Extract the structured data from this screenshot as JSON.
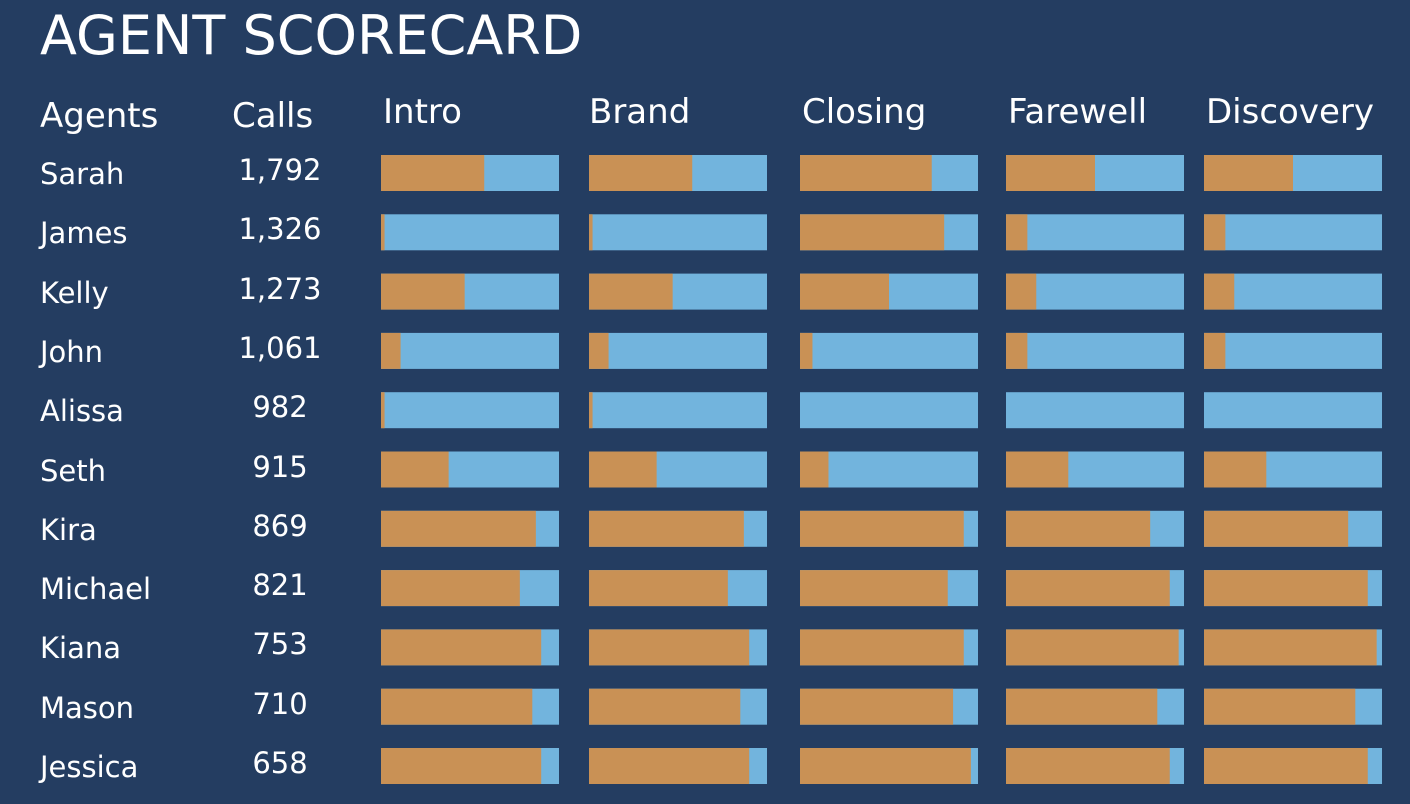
{
  "title": "AGENT SCORECARD",
  "headers": {
    "agents": "Agents",
    "calls": "Calls"
  },
  "colors": {
    "background": "#243d61",
    "score": "#c99155",
    "remainder": "#72b4dd",
    "text": "#ffffff"
  },
  "chart_data": {
    "type": "bar",
    "stacked": true,
    "metrics": [
      "Intro",
      "Brand",
      "Closing",
      "Farewell",
      "Discovery"
    ],
    "agents": [
      "Sarah",
      "James",
      "Kelly",
      "John",
      "Alissa",
      "Seth",
      "Kira",
      "Michael",
      "Kiana",
      "Mason",
      "Jessica"
    ],
    "calls": [
      "1,792",
      "1,326",
      "1,273",
      "1,061",
      "982",
      "915",
      "869",
      "821",
      "753",
      "710",
      "658"
    ],
    "scores": [
      [
        0.58,
        0.58,
        0.74,
        0.5,
        0.5
      ],
      [
        0.02,
        0.02,
        0.81,
        0.12,
        0.12
      ],
      [
        0.47,
        0.47,
        0.5,
        0.17,
        0.17
      ],
      [
        0.11,
        0.11,
        0.07,
        0.12,
        0.12
      ],
      [
        0.02,
        0.02,
        0.0,
        0.0,
        0.0
      ],
      [
        0.38,
        0.38,
        0.16,
        0.35,
        0.35
      ],
      [
        0.87,
        0.87,
        0.92,
        0.81,
        0.81
      ],
      [
        0.78,
        0.78,
        0.83,
        0.92,
        0.92
      ],
      [
        0.9,
        0.9,
        0.92,
        0.97,
        0.97
      ],
      [
        0.85,
        0.85,
        0.86,
        0.85,
        0.85
      ],
      [
        0.9,
        0.9,
        0.96,
        0.92,
        0.92
      ]
    ],
    "scale": [
      0,
      1
    ]
  }
}
